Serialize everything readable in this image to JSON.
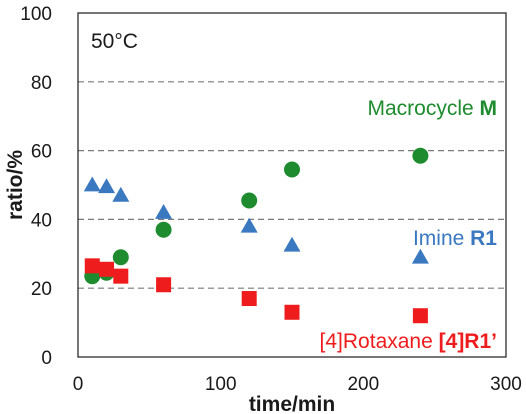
{
  "chart_data": {
    "type": "scatter",
    "condition_label": "50°C",
    "xlabel": "time/min",
    "ylabel": "ratio/%",
    "xlim": [
      0,
      300
    ],
    "ylim": [
      0,
      100
    ],
    "xticks": [
      "0",
      "100",
      "200",
      "300"
    ],
    "yticks": [
      "0",
      "20",
      "40",
      "60",
      "80",
      "100"
    ],
    "grid": "dashed horizontal at 20, 40, 60, 80",
    "series": [
      {
        "marker": "triangle",
        "color": "#3a78c0",
        "label_prefix": "Imine ",
        "label_bold": "R1",
        "points": [
          [
            10,
            50
          ],
          [
            20,
            49.5
          ],
          [
            30,
            47
          ],
          [
            60,
            42
          ],
          [
            120,
            38
          ],
          [
            150,
            32.5
          ],
          [
            240,
            29
          ]
        ]
      },
      {
        "marker": "circle",
        "color": "#1e8c2e",
        "label_prefix": "Macrocycle ",
        "label_bold": "M",
        "points": [
          [
            10,
            23.5
          ],
          [
            20,
            24.5
          ],
          [
            30,
            29
          ],
          [
            60,
            37
          ],
          [
            120,
            45.5
          ],
          [
            150,
            54.5
          ],
          [
            240,
            58.5
          ]
        ]
      },
      {
        "marker": "square",
        "color": "#ee1c1c",
        "label_prefix": "[4]Rotaxane ",
        "label_bold": "[4]R1’",
        "points": [
          [
            10,
            26.5
          ],
          [
            20,
            25.5
          ],
          [
            30,
            23.5
          ],
          [
            60,
            21
          ],
          [
            120,
            17
          ],
          [
            150,
            13
          ],
          [
            240,
            12
          ]
        ]
      }
    ]
  }
}
